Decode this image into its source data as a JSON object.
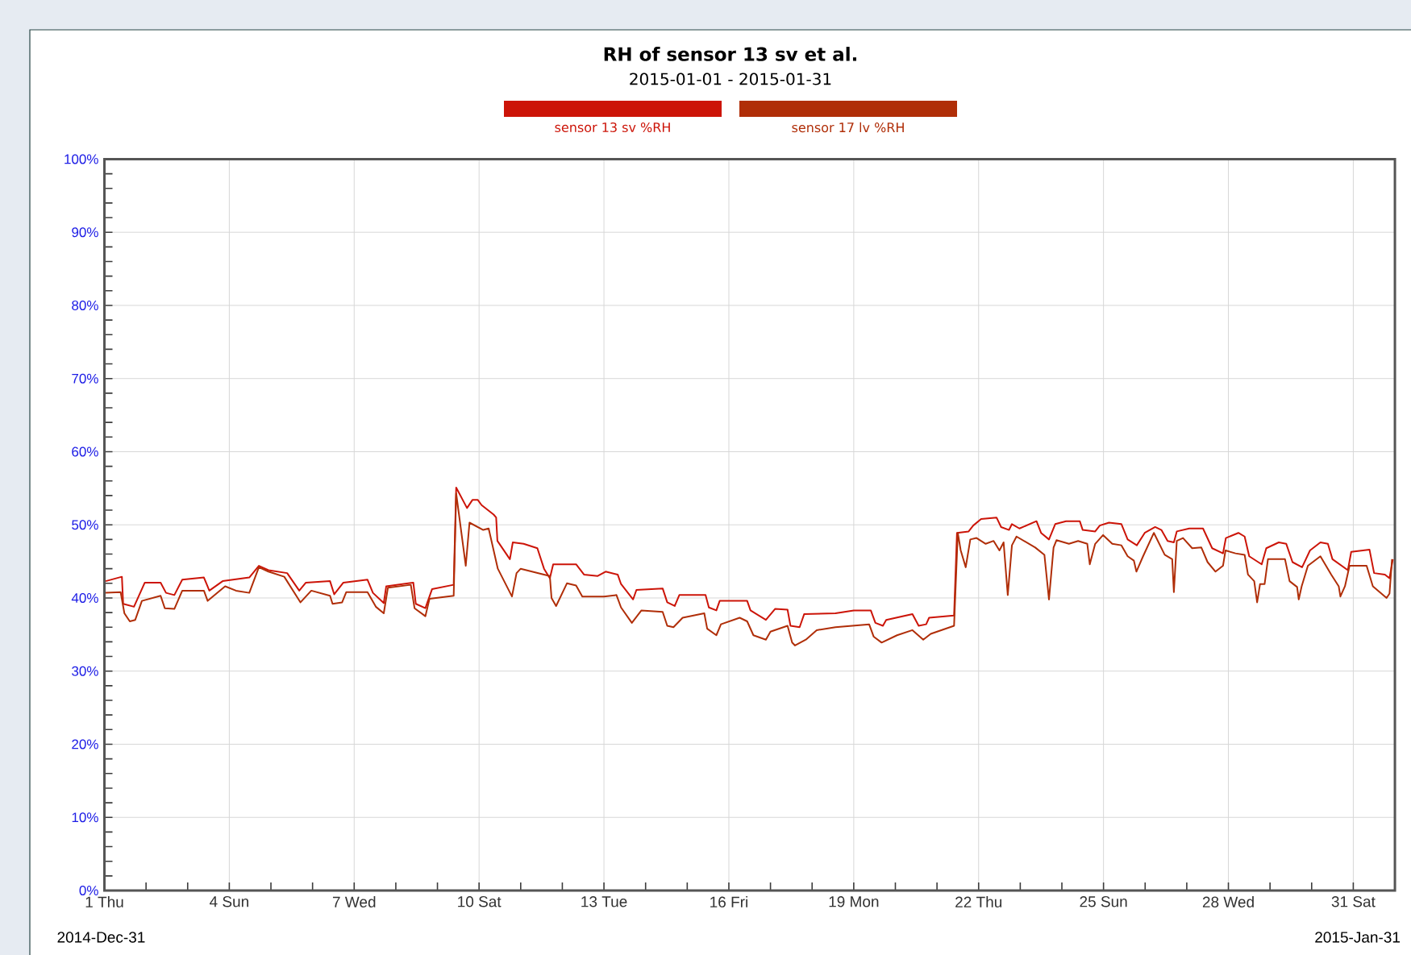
{
  "chart_data": {
    "type": "line",
    "title": "RH of sensor 13 sv et al.",
    "subtitle": "2015-01-01 - 2015-01-31",
    "annotations": [
      "2014-Dec-31",
      "2015-Jan-31"
    ],
    "legend": "top",
    "grid": true,
    "xlim": [
      1,
      32
    ],
    "ylim": [
      0,
      100
    ],
    "xticks": [
      {
        "value": 1,
        "label": "1 Thu"
      },
      {
        "value": 2,
        "label": null
      },
      {
        "value": 3,
        "label": null
      },
      {
        "value": 4,
        "label": "4 Sun"
      },
      {
        "value": 5,
        "label": null
      },
      {
        "value": 6,
        "label": null
      },
      {
        "value": 7,
        "label": "7 Wed"
      },
      {
        "value": 8,
        "label": null
      },
      {
        "value": 9,
        "label": null
      },
      {
        "value": 10,
        "label": "10 Sat"
      },
      {
        "value": 11,
        "label": null
      },
      {
        "value": 12,
        "label": null
      },
      {
        "value": 13,
        "label": "13 Tue"
      },
      {
        "value": 14,
        "label": null
      },
      {
        "value": 15,
        "label": null
      },
      {
        "value": 16,
        "label": "16 Fri"
      },
      {
        "value": 17,
        "label": null
      },
      {
        "value": 18,
        "label": null
      },
      {
        "value": 19,
        "label": "19 Mon"
      },
      {
        "value": 20,
        "label": null
      },
      {
        "value": 21,
        "label": null
      },
      {
        "value": 22,
        "label": "22 Thu"
      },
      {
        "value": 23,
        "label": null
      },
      {
        "value": 24,
        "label": null
      },
      {
        "value": 25,
        "label": "25 Sun"
      },
      {
        "value": 26,
        "label": null
      },
      {
        "value": 27,
        "label": null
      },
      {
        "value": 28,
        "label": "28 Wed"
      },
      {
        "value": 29,
        "label": null
      },
      {
        "value": 30,
        "label": null
      },
      {
        "value": 31,
        "label": "31 Sat"
      }
    ],
    "yticks": [
      {
        "value": 0,
        "label": "0%"
      },
      {
        "value": 2,
        "label": null
      },
      {
        "value": 4,
        "label": null
      },
      {
        "value": 6,
        "label": null
      },
      {
        "value": 8,
        "label": null
      },
      {
        "value": 10,
        "label": "10%"
      },
      {
        "value": 12,
        "label": null
      },
      {
        "value": 14,
        "label": null
      },
      {
        "value": 16,
        "label": null
      },
      {
        "value": 18,
        "label": null
      },
      {
        "value": 20,
        "label": "20%"
      },
      {
        "value": 22,
        "label": null
      },
      {
        "value": 24,
        "label": null
      },
      {
        "value": 26,
        "label": null
      },
      {
        "value": 28,
        "label": null
      },
      {
        "value": 30,
        "label": "30%"
      },
      {
        "value": 32,
        "label": null
      },
      {
        "value": 34,
        "label": null
      },
      {
        "value": 36,
        "label": null
      },
      {
        "value": 38,
        "label": null
      },
      {
        "value": 40,
        "label": "40%"
      },
      {
        "value": 42,
        "label": null
      },
      {
        "value": 44,
        "label": null
      },
      {
        "value": 46,
        "label": null
      },
      {
        "value": 48,
        "label": null
      },
      {
        "value": 50,
        "label": "50%"
      },
      {
        "value": 52,
        "label": null
      },
      {
        "value": 54,
        "label": null
      },
      {
        "value": 56,
        "label": null
      },
      {
        "value": 58,
        "label": null
      },
      {
        "value": 60,
        "label": "60%"
      },
      {
        "value": 62,
        "label": null
      },
      {
        "value": 64,
        "label": null
      },
      {
        "value": 66,
        "label": null
      },
      {
        "value": 68,
        "label": null
      },
      {
        "value": 70,
        "label": "70%"
      },
      {
        "value": 72,
        "label": null
      },
      {
        "value": 74,
        "label": null
      },
      {
        "value": 76,
        "label": null
      },
      {
        "value": 78,
        "label": null
      },
      {
        "value": 80,
        "label": "80%"
      },
      {
        "value": 82,
        "label": null
      },
      {
        "value": 84,
        "label": null
      },
      {
        "value": 86,
        "label": null
      },
      {
        "value": 88,
        "label": null
      },
      {
        "value": 90,
        "label": "90%"
      },
      {
        "value": 92,
        "label": null
      },
      {
        "value": 94,
        "label": null
      },
      {
        "value": 96,
        "label": null
      },
      {
        "value": 98,
        "label": null
      },
      {
        "value": 100,
        "label": "100%"
      }
    ],
    "series": [
      {
        "name": "sensor 13 sv %RH",
        "color": "#cc1408",
        "x": [
          1.03,
          1.42,
          1.45,
          1.71,
          1.97,
          2.35,
          2.48,
          2.68,
          2.87,
          3.39,
          3.52,
          3.84,
          4.48,
          4.71,
          4.94,
          5.39,
          5.68,
          5.84,
          6.42,
          6.52,
          6.74,
          7.32,
          7.45,
          7.71,
          7.77,
          8.42,
          8.48,
          8.71,
          8.87,
          9.39,
          9.45,
          9.71,
          9.84,
          9.97,
          10.06,
          10.35,
          10.41,
          10.44,
          10.74,
          10.81,
          11.07,
          11.4,
          11.56,
          11.7,
          11.78,
          12.33,
          12.52,
          12.85,
          13.04,
          13.33,
          13.41,
          13.7,
          13.78,
          14.41,
          14.52,
          14.7,
          14.81,
          15.44,
          15.52,
          15.7,
          15.78,
          16.44,
          16.52,
          16.89,
          17.11,
          17.41,
          17.48,
          17.7,
          17.81,
          18.56,
          19.0,
          19.41,
          19.52,
          19.7,
          19.78,
          20.41,
          20.56,
          20.74,
          20.81,
          21.41,
          21.48,
          21.76,
          21.87,
          22.06,
          22.43,
          22.54,
          22.73,
          22.8,
          22.98,
          23.39,
          23.5,
          23.69,
          23.84,
          24.1,
          24.43,
          24.5,
          24.8,
          24.91,
          25.13,
          25.43,
          25.58,
          25.8,
          25.99,
          26.24,
          26.39,
          26.54,
          26.69,
          26.76,
          27.06,
          27.39,
          27.61,
          27.87,
          27.94,
          28.24,
          28.39,
          28.5,
          28.8,
          28.91,
          29.21,
          29.39,
          29.54,
          29.77,
          29.96,
          30.21,
          30.39,
          30.5,
          30.87,
          30.95,
          31.39,
          31.5,
          31.76,
          31.87,
          31.95
        ],
        "values": [
          42.3,
          42.9,
          39.2,
          38.8,
          42.1,
          42.1,
          40.7,
          40.4,
          42.5,
          42.8,
          41.0,
          42.3,
          42.8,
          44.4,
          43.8,
          43.4,
          41.0,
          42.1,
          42.3,
          40.5,
          42.1,
          42.5,
          40.7,
          39.3,
          41.6,
          42.1,
          39.2,
          38.6,
          41.2,
          41.8,
          55.1,
          52.3,
          53.4,
          53.4,
          52.7,
          51.4,
          51.0,
          47.8,
          45.3,
          47.6,
          47.4,
          46.8,
          44.0,
          42.7,
          44.6,
          44.6,
          43.2,
          43.0,
          43.6,
          43.2,
          41.9,
          39.8,
          41.1,
          41.3,
          39.4,
          38.9,
          40.4,
          40.4,
          38.7,
          38.3,
          39.6,
          39.6,
          38.3,
          37.0,
          38.5,
          38.4,
          36.2,
          36.0,
          37.8,
          37.9,
          38.3,
          38.3,
          36.6,
          36.2,
          37.0,
          37.8,
          36.2,
          36.4,
          37.3,
          37.6,
          48.9,
          49.1,
          49.9,
          50.8,
          51.0,
          49.7,
          49.3,
          50.1,
          49.5,
          50.5,
          48.9,
          48.0,
          50.1,
          50.5,
          50.5,
          49.3,
          49.1,
          49.9,
          50.3,
          50.1,
          48.0,
          47.2,
          48.9,
          49.7,
          49.3,
          47.8,
          47.6,
          49.1,
          49.5,
          49.5,
          46.8,
          46.1,
          48.2,
          48.9,
          48.4,
          45.7,
          44.6,
          46.8,
          47.6,
          47.4,
          44.9,
          44.2,
          46.5,
          47.6,
          47.4,
          45.3,
          43.8,
          46.3,
          46.6,
          43.4,
          43.2,
          42.7,
          45.3
        ]
      },
      {
        "name": "sensor 17 lv %RH",
        "color": "#b02e08",
        "x": [
          1.03,
          1.39,
          1.48,
          1.61,
          1.74,
          1.9,
          2.35,
          2.45,
          2.68,
          2.87,
          3.39,
          3.48,
          3.9,
          4.16,
          4.48,
          4.71,
          4.94,
          5.32,
          5.71,
          5.97,
          6.42,
          6.48,
          6.71,
          6.81,
          7.32,
          7.52,
          7.71,
          7.81,
          8.36,
          8.45,
          8.71,
          8.81,
          9.39,
          9.45,
          9.68,
          9.77,
          10.1,
          10.23,
          10.45,
          10.79,
          10.9,
          11.0,
          11.56,
          11.7,
          11.7,
          11.74,
          11.85,
          12.11,
          12.33,
          12.48,
          13.0,
          13.3,
          13.41,
          13.67,
          13.9,
          14.41,
          14.52,
          14.67,
          14.89,
          15.41,
          15.48,
          15.7,
          15.81,
          16.26,
          16.44,
          16.59,
          16.89,
          17.0,
          17.41,
          17.52,
          17.59,
          17.85,
          18.11,
          18.56,
          19.37,
          19.48,
          19.67,
          20.04,
          20.41,
          20.67,
          20.85,
          21.41,
          21.5,
          21.57,
          21.69,
          21.8,
          21.95,
          22.17,
          22.36,
          22.5,
          22.6,
          22.7,
          22.8,
          22.91,
          23.36,
          23.58,
          23.69,
          23.8,
          23.87,
          24.17,
          24.39,
          24.61,
          24.67,
          24.8,
          24.99,
          25.21,
          25.43,
          25.58,
          25.73,
          25.79,
          25.95,
          26.21,
          26.47,
          26.65,
          26.69,
          26.76,
          26.91,
          27.13,
          27.35,
          27.5,
          27.69,
          27.87,
          27.93,
          28.17,
          28.39,
          28.47,
          28.62,
          28.69,
          28.76,
          28.87,
          28.95,
          29.36,
          29.47,
          29.65,
          29.69,
          29.76,
          29.91,
          30.21,
          30.47,
          30.65,
          30.69,
          30.8,
          30.91,
          31.32,
          31.47,
          31.8,
          31.87,
          31.93
        ],
        "values": [
          40.7,
          40.8,
          37.9,
          36.8,
          37.0,
          39.6,
          40.3,
          38.6,
          38.5,
          41.0,
          41.0,
          39.6,
          41.6,
          41.0,
          40.7,
          44.2,
          43.6,
          42.9,
          39.4,
          41.0,
          40.3,
          39.2,
          39.4,
          40.8,
          40.8,
          38.8,
          37.9,
          41.4,
          41.8,
          38.6,
          37.5,
          39.9,
          40.3,
          54.3,
          44.4,
          50.3,
          49.3,
          49.5,
          44.0,
          40.2,
          43.4,
          44.0,
          43.2,
          43.0,
          43.0,
          40.0,
          38.9,
          42.0,
          41.7,
          40.2,
          40.2,
          40.4,
          38.7,
          36.6,
          38.3,
          38.1,
          36.2,
          36.0,
          37.3,
          37.9,
          35.8,
          34.9,
          36.4,
          37.3,
          36.8,
          34.9,
          34.3,
          35.4,
          36.2,
          33.9,
          33.5,
          34.3,
          35.6,
          36.0,
          36.4,
          34.7,
          33.9,
          34.9,
          35.6,
          34.3,
          35.1,
          36.2,
          48.9,
          46.5,
          44.2,
          48.0,
          48.2,
          47.4,
          47.8,
          46.5,
          47.6,
          40.4,
          47.2,
          48.4,
          46.9,
          45.9,
          39.8,
          46.9,
          47.9,
          47.4,
          47.8,
          47.4,
          44.6,
          47.4,
          48.6,
          47.4,
          47.2,
          45.7,
          45.1,
          43.6,
          45.7,
          48.9,
          45.9,
          45.3,
          40.8,
          47.8,
          48.2,
          46.8,
          46.9,
          44.9,
          43.6,
          44.4,
          46.5,
          46.1,
          45.9,
          43.2,
          42.3,
          39.4,
          41.9,
          41.9,
          45.3,
          45.3,
          42.3,
          41.5,
          39.8,
          41.6,
          44.4,
          45.7,
          43.2,
          41.6,
          40.2,
          41.6,
          44.4,
          44.4,
          41.6,
          40.0,
          40.6,
          45.3
        ]
      }
    ]
  }
}
